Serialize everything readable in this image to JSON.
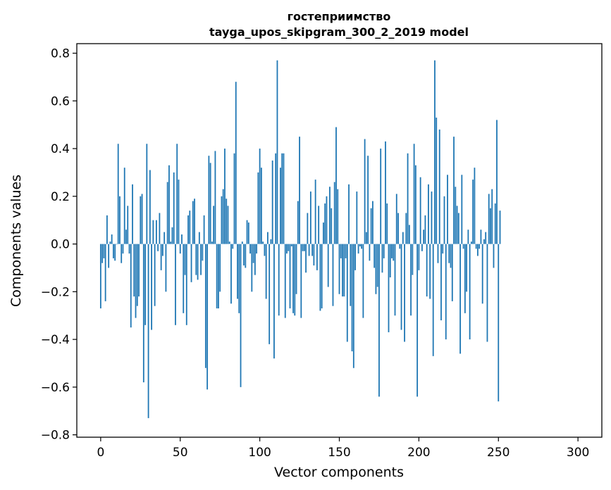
{
  "chart_data": {
    "type": "bar",
    "title_line1": "гостеприимство",
    "title_line2": "tayga_upos_skipgram_300_2_2019 model",
    "xlabel": "Vector components",
    "ylabel": "Components values",
    "xlim": [
      -15,
      315
    ],
    "ylim": [
      -0.81,
      0.84
    ],
    "x_ticks": [
      0,
      50,
      100,
      150,
      200,
      250,
      300
    ],
    "y_ticks": [
      -0.8,
      -0.6,
      -0.4,
      -0.2,
      0.0,
      0.2,
      0.4,
      0.6,
      0.8
    ],
    "x_tick_labels": [
      "0",
      "50",
      "100",
      "150",
      "200",
      "250",
      "300"
    ],
    "y_tick_labels": [
      "−0.8",
      "−0.6",
      "−0.4",
      "−0.2",
      "0.0",
      "0.2",
      "0.4",
      "0.6",
      "0.8"
    ],
    "bar_color": "#1f77b4",
    "grid": false,
    "values": [
      -0.27,
      -0.08,
      -0.06,
      -0.24,
      0.12,
      -0.1,
      0.01,
      0.04,
      -0.06,
      -0.07,
      0.0,
      0.42,
      0.2,
      -0.08,
      -0.04,
      0.32,
      0.06,
      0.16,
      -0.04,
      -0.35,
      0.25,
      -0.22,
      -0.31,
      -0.26,
      -0.22,
      0.2,
      0.21,
      -0.58,
      -0.34,
      0.42,
      -0.73,
      0.31,
      -0.36,
      0.1,
      -0.26,
      0.1,
      -0.03,
      0.13,
      -0.11,
      -0.05,
      0.05,
      -0.2,
      0.26,
      0.33,
      0.01,
      0.07,
      0.3,
      -0.34,
      0.42,
      0.27,
      -0.04,
      0.04,
      -0.29,
      -0.13,
      -0.34,
      0.12,
      0.14,
      -0.16,
      0.18,
      0.19,
      -0.13,
      -0.15,
      0.05,
      -0.13,
      -0.07,
      0.12,
      -0.52,
      -0.61,
      0.37,
      0.34,
      0.01,
      0.16,
      0.39,
      -0.27,
      -0.27,
      -0.2,
      0.2,
      0.23,
      0.4,
      0.19,
      0.16,
      0.01,
      -0.25,
      -0.02,
      0.38,
      0.68,
      -0.23,
      -0.29,
      -0.6,
      0.01,
      -0.09,
      -0.1,
      0.1,
      0.09,
      -0.04,
      -0.2,
      -0.08,
      -0.13,
      -0.04,
      0.3,
      0.4,
      0.32,
      0.01,
      -0.05,
      -0.23,
      0.05,
      -0.42,
      0.02,
      0.35,
      -0.48,
      0.38,
      0.77,
      -0.3,
      0.32,
      0.38,
      0.38,
      -0.31,
      -0.04,
      -0.03,
      -0.27,
      -0.01,
      -0.29,
      -0.3,
      -0.21,
      0.18,
      0.45,
      -0.31,
      -0.03,
      -0.03,
      -0.12,
      0.13,
      -0.05,
      0.22,
      -0.05,
      -0.09,
      0.27,
      -0.11,
      0.16,
      -0.28,
      -0.27,
      0.09,
      0.17,
      0.2,
      -0.18,
      0.24,
      0.15,
      -0.26,
      0.26,
      0.49,
      0.23,
      -0.21,
      -0.06,
      -0.22,
      -0.22,
      -0.06,
      -0.41,
      0.25,
      -0.26,
      -0.45,
      -0.52,
      -0.11,
      0.22,
      -0.04,
      -0.01,
      -0.02,
      -0.31,
      0.44,
      0.05,
      0.37,
      -0.07,
      0.15,
      0.18,
      -0.1,
      -0.21,
      -0.18,
      -0.64,
      0.4,
      -0.12,
      -0.06,
      0.43,
      0.17,
      -0.37,
      -0.14,
      -0.06,
      -0.07,
      -0.3,
      0.21,
      0.13,
      -0.02,
      -0.36,
      0.05,
      -0.41,
      0.13,
      0.38,
      0.08,
      -0.3,
      -0.13,
      0.42,
      0.33,
      -0.64,
      -0.11,
      0.28,
      -0.03,
      0.06,
      0.12,
      -0.22,
      0.25,
      -0.23,
      0.22,
      -0.47,
      0.77,
      0.53,
      -0.08,
      0.48,
      -0.32,
      -0.04,
      0.2,
      -0.4,
      0.29,
      -0.08,
      -0.1,
      -0.24,
      0.45,
      0.24,
      0.16,
      0.13,
      -0.46,
      0.29,
      -0.02,
      -0.29,
      -0.2,
      0.06,
      -0.4,
      0.01,
      0.27,
      0.32,
      -0.02,
      -0.05,
      -0.02,
      0.06,
      -0.25,
      0.02,
      0.05,
      -0.41,
      0.21,
      0.15,
      0.23,
      -0.1,
      0.17,
      0.52,
      -0.66,
      0.14
    ]
  }
}
